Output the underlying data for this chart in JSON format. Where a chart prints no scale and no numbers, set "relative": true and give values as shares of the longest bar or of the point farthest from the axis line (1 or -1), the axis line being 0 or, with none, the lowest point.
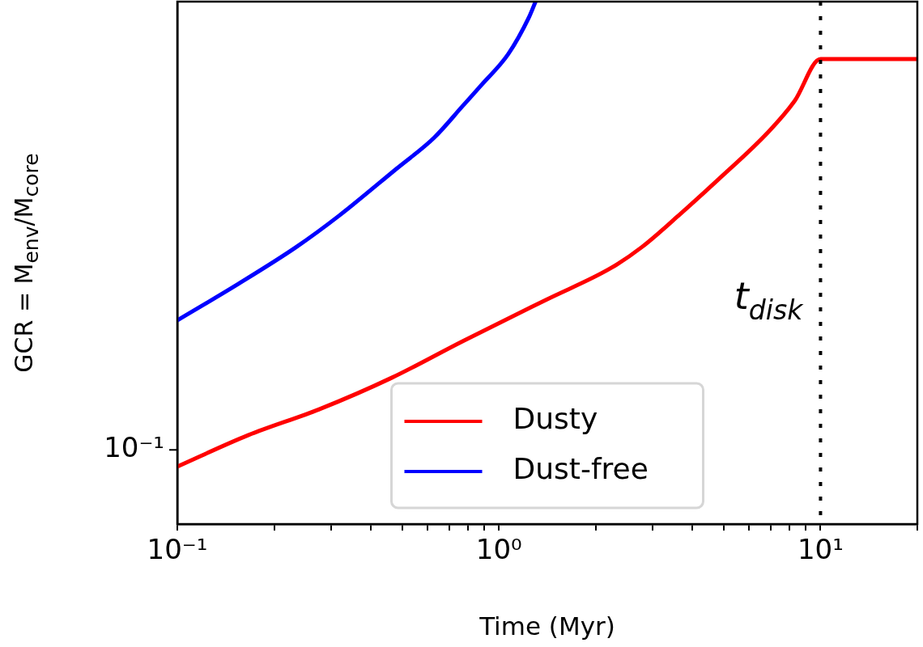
{
  "chart_data": {
    "type": "line",
    "xlabel": "Time (Myr)",
    "ylabel": "GCR = M$_{env}$/M$_{core}$",
    "log": "x",
    "xlim": [
      0.1,
      20
    ],
    "relative": true,
    "xticks": [
      {
        "value": 0.1,
        "label": "10⁻¹"
      },
      {
        "value": 0.2,
        "label": null
      },
      {
        "value": 0.3,
        "label": null
      },
      {
        "value": 0.4,
        "label": null
      },
      {
        "value": 0.5,
        "label": null
      },
      {
        "value": 0.6,
        "label": null
      },
      {
        "value": 0.7,
        "label": null
      },
      {
        "value": 0.8,
        "label": null
      },
      {
        "value": 0.9,
        "label": null
      },
      {
        "value": 1,
        "label": "10⁰"
      },
      {
        "value": 2,
        "label": null
      },
      {
        "value": 3,
        "label": null
      },
      {
        "value": 4,
        "label": null
      },
      {
        "value": 5,
        "label": null
      },
      {
        "value": 6,
        "label": null
      },
      {
        "value": 7,
        "label": null
      },
      {
        "value": 8,
        "label": null
      },
      {
        "value": 9,
        "label": null
      },
      {
        "value": 10,
        "label": "10¹"
      },
      {
        "value": 20,
        "label": null
      }
    ],
    "grid": false,
    "legend": "bottom",
    "marker": "none",
    "line_style": "solid",
    "series": [
      {
        "name": "Dusty",
        "color": "#ff0000",
        "x": [
          0.1,
          0.166,
          0.277,
          0.464,
          0.771,
          1.41,
          2.23,
          2.78,
          3.61,
          4.82,
          6.87,
          8.31,
          10,
          20
        ],
        "values": [
          0.11,
          0.17,
          0.22,
          0.28,
          0.35,
          0.43,
          0.49,
          0.53,
          0.59,
          0.66,
          0.75,
          0.81,
          0.89,
          0.89
        ]
      },
      {
        "name": "Dust-free",
        "color": "#0000ff",
        "x": [
          0.1,
          0.155,
          0.234,
          0.318,
          0.48,
          0.63,
          0.771,
          0.881,
          1.07,
          1.24,
          1.3
        ],
        "values": [
          0.39,
          0.46,
          0.53,
          0.59,
          0.68,
          0.74,
          0.8,
          0.84,
          0.9,
          0.97,
          1.0
        ]
      }
    ],
    "annotations": [
      "10⁻¹"
    ],
    "ref_lines": [
      {
        "axis": "x",
        "value": 10,
        "label": "t$_{disk}$",
        "color": "#000000",
        "line_style": "dotted"
      }
    ]
  }
}
